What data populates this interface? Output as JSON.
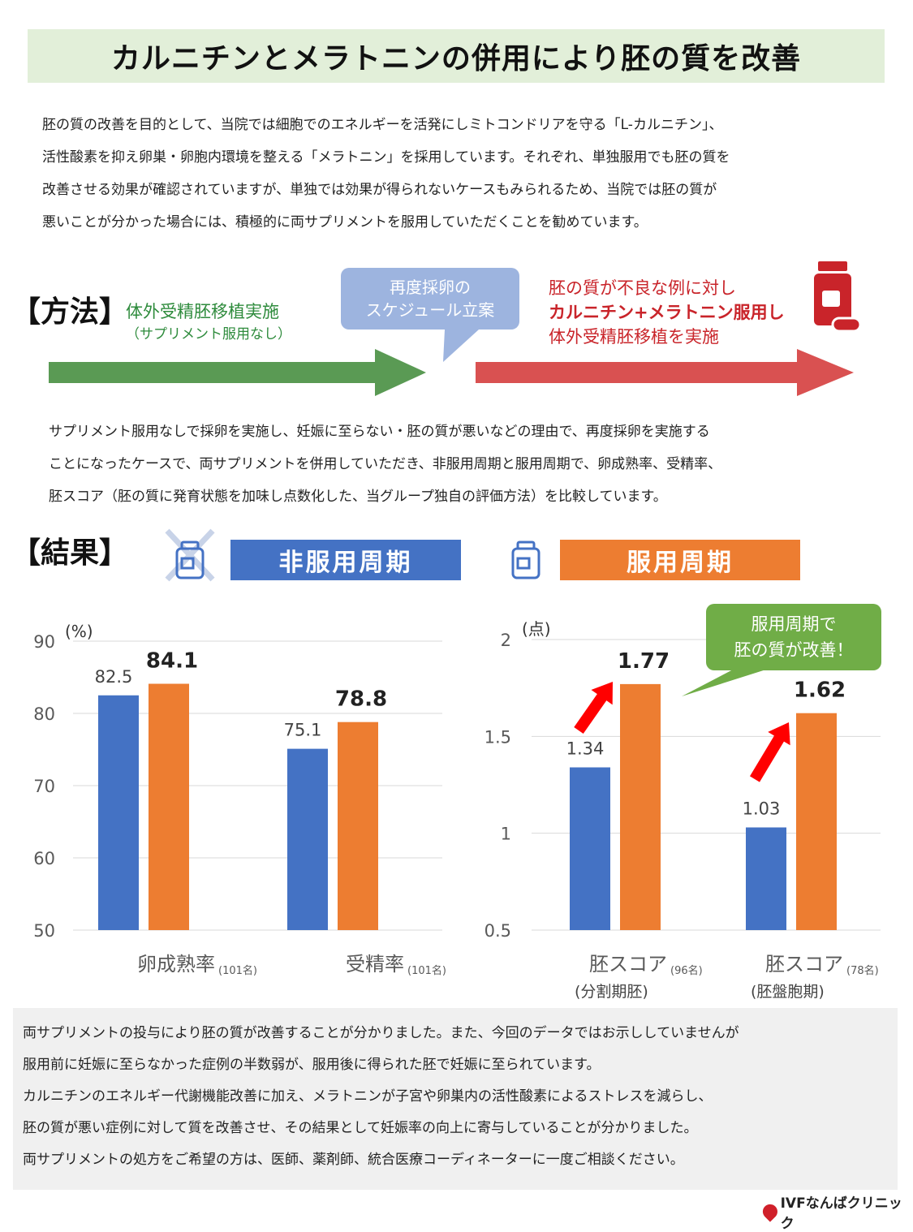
{
  "title": "カルニチンとメラトニンの併用により胚の質を改善",
  "intro": [
    "胚の質の改善を目的として、当院では細胞でのエネルギーを活発にしミトコンドリアを守る「L-カルニチン」、",
    "活性酸素を抑え卵巣・卵胞内環境を整える「メラトニン」を採用しています。それぞれ、単独服用でも胚の質を",
    "改善させる効果が確認されていますが、単独では効果が得られないケースもみられるため、当院では胚の質が",
    "悪いことが分かった場合には、積極的に両サプリメントを服用していただくことを勧めています。"
  ],
  "method": {
    "heading": "【方法】",
    "step1_line1": "体外受精胚移植実施",
    "step1_line2": "（サプリメント服用なし）",
    "bubble_line1": "再度採卵の",
    "bubble_line2": "スケジュール立案",
    "step3_line1": "胚の質が不良な例に対し",
    "step3_line2": "カルニチン+メラトニン服用し",
    "step3_line3": "体外受精胚移植を実施",
    "description": [
      "サプリメント服用なしで採卵を実施し、妊娠に至らない・胚の質が悪いなどの理由で、再度採卵を実施する",
      "ことになったケースで、両サプリメントを併用していただき、非服用周期と服用周期で、卵成熟率、受精率、",
      "胚スコア（胚の質に発育状態を加味し点数化した、当グループ独自の評価方法）を比較しています。"
    ],
    "colors": {
      "green": "#5a9a54",
      "red": "#d95151",
      "bubble": "#9db4df"
    }
  },
  "results": {
    "heading": "【結果】",
    "non_label": "非服用周期",
    "on_label": "服用周期",
    "callout_line1": "服用周期で",
    "callout_line2": "胚の質が改善！",
    "colors": {
      "non": "#4472c4",
      "on": "#ed7d31",
      "callout": "#70ad47",
      "arrow": "#ff0000"
    }
  },
  "chart_data": [
    {
      "type": "bar",
      "unit_label": "(%)",
      "ylim": [
        50,
        90
      ],
      "yticks": [
        "90",
        "80",
        "70",
        "60",
        "50"
      ],
      "grid": true,
      "categories": [
        {
          "name": "卵成熟率",
          "note": "(101名)"
        },
        {
          "name": "受精率",
          "note": "(101名)"
        }
      ],
      "series": [
        {
          "values": [
            82.5,
            75.1
          ],
          "labels": [
            "82.5",
            "75.1"
          ]
        },
        {
          "values": [
            84.1,
            78.8
          ],
          "labels": [
            "84.1",
            "78.8"
          ]
        }
      ]
    },
    {
      "type": "bar",
      "unit_label": "(点)",
      "ylim": [
        0.5,
        2
      ],
      "yticks": [
        "2",
        "1.5",
        "1",
        "0.5"
      ],
      "grid": true,
      "categories": [
        {
          "name": "胚スコア",
          "note": "(96名)",
          "sub": "(分割期胚)"
        },
        {
          "name": "胚スコア",
          "note": "(78名)",
          "sub": "(胚盤胞期)"
        }
      ],
      "series": [
        {
          "values": [
            1.34,
            1.03
          ],
          "labels": [
            "1.34",
            "1.03"
          ]
        },
        {
          "values": [
            1.77,
            1.62
          ],
          "labels": [
            "1.77",
            "1.62"
          ]
        }
      ]
    }
  ],
  "conclusion": [
    "両サプリメントの投与により胚の質が改善することが分かりました。また、今回のデータではお示ししていませんが",
    "服用前に妊娠に至らなかった症例の半数弱が、服用後に得られた胚で妊娠に至られています。",
    "カルニチンのエネルギー代謝機能改善に加え、メラトニンが子宮や卵巣内の活性酸素によるストレスを減らし、",
    "胚の質が悪い症例に対して質を改善させ、その結果として妊娠率の向上に寄与していることが分かりました。",
    "両サプリメントの処方をご希望の方は、医師、薬剤師、統合医療コーディネーターに一度ご相談ください。"
  ],
  "logo": "IVFなんばクリニック",
  "icons": {
    "bottle": "supplement-bottle-icon",
    "cross": "cross-mark-icon"
  }
}
